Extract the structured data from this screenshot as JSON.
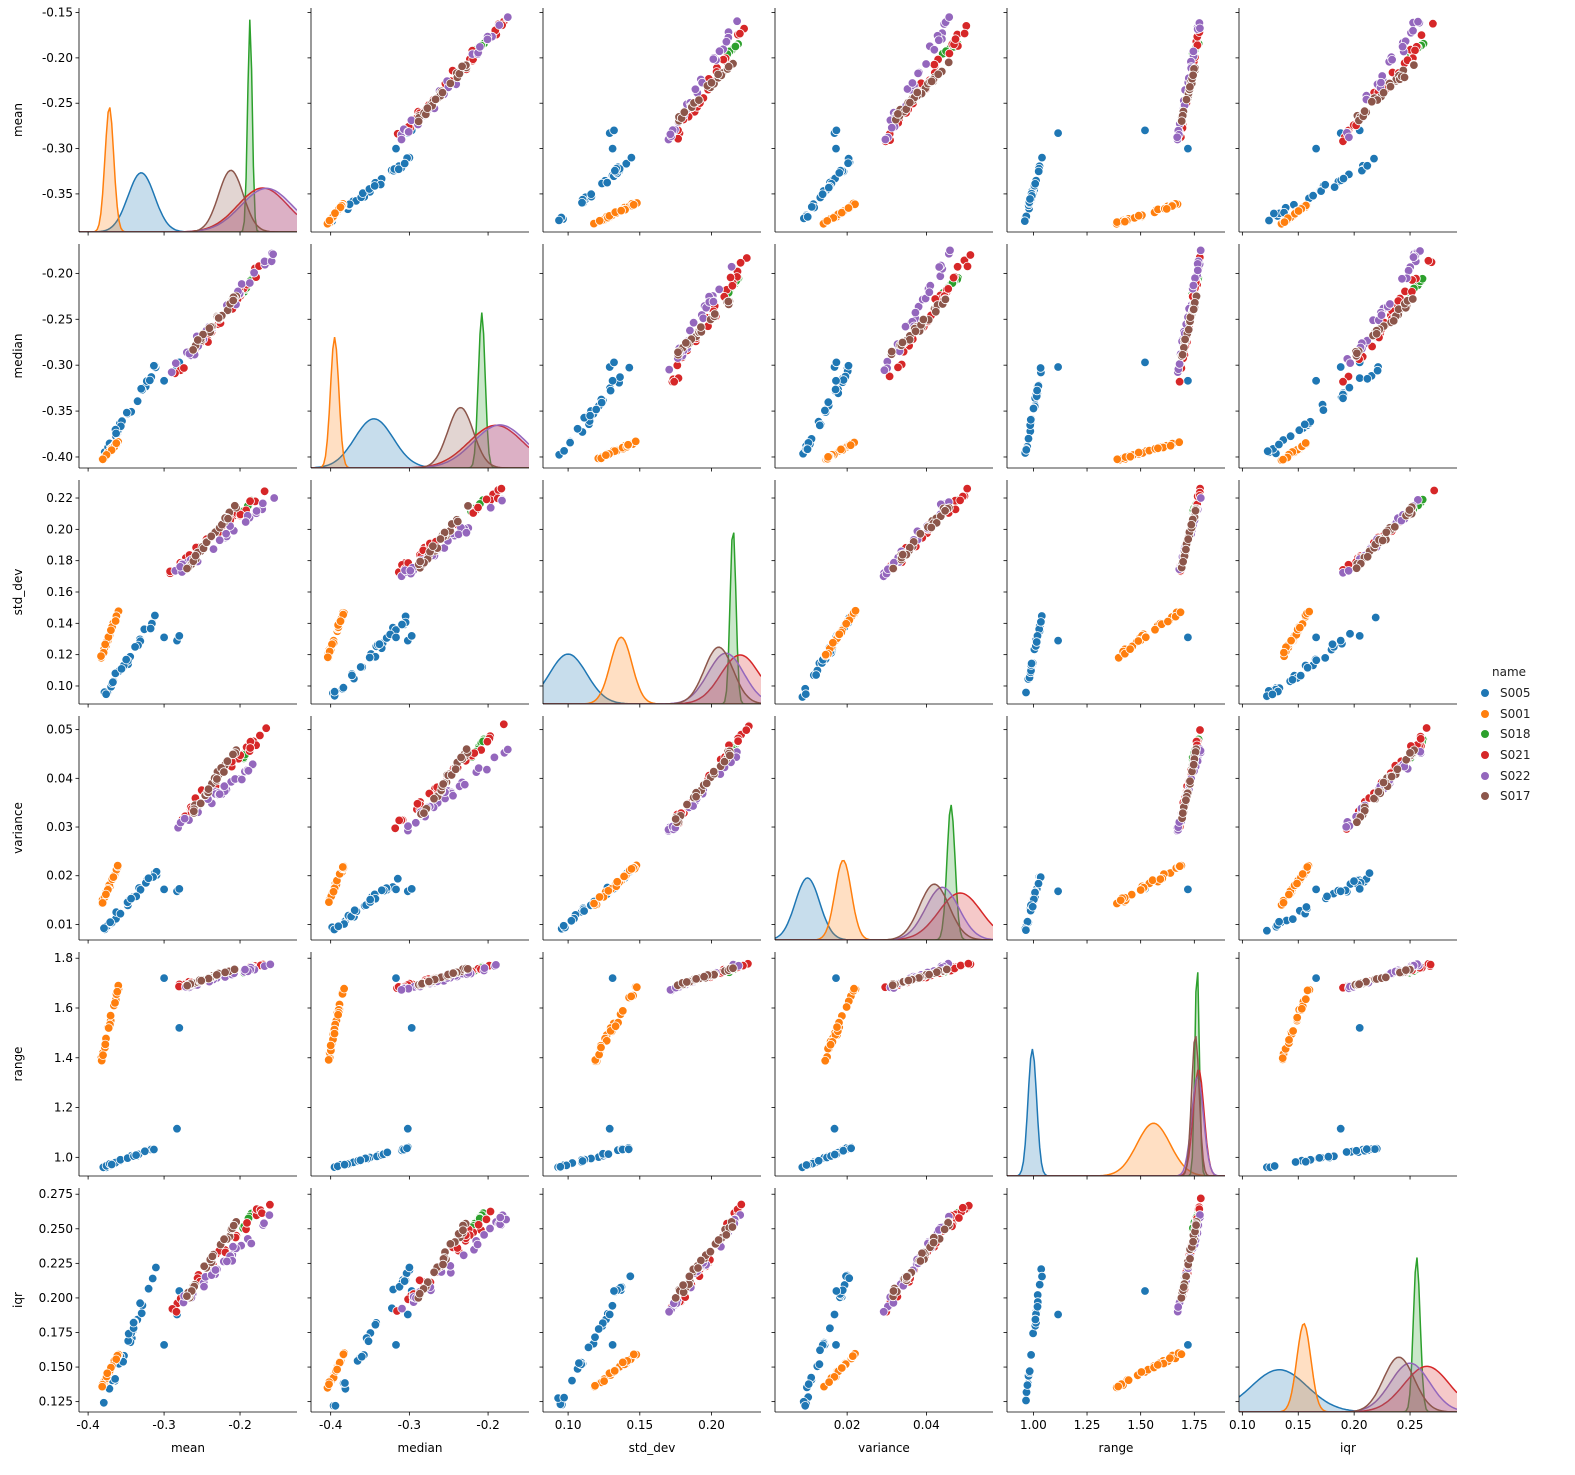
{
  "chart_data": {
    "type": "scatter",
    "title": "",
    "variables": [
      "mean",
      "median",
      "std_dev",
      "variance",
      "range",
      "iqr"
    ],
    "diagonal": "kde",
    "axes": {
      "mean": {
        "lim": [
          -0.412,
          -0.125
        ],
        "ticks": [
          -0.4,
          -0.3,
          -0.2
        ],
        "tick_labels": [
          "-0.4",
          "-0.3",
          "-0.2"
        ],
        "y_lim": [
          -0.392,
          -0.145
        ],
        "y_ticks": [
          -0.35,
          -0.3,
          -0.25,
          -0.2,
          -0.15
        ],
        "y_tick_labels": [
          "-0.35",
          "-0.30",
          "-0.25",
          "-0.20",
          "-0.15"
        ]
      },
      "median": {
        "lim": [
          -0.425,
          -0.148
        ],
        "ticks": [
          -0.4,
          -0.3,
          -0.2
        ],
        "tick_labels": [
          "-0.4",
          "-0.3",
          "-0.2"
        ],
        "y_lim": [
          -0.412,
          -0.168
        ],
        "y_ticks": [
          -0.4,
          -0.35,
          -0.3,
          -0.25,
          -0.2
        ],
        "y_tick_labels": [
          "-0.40",
          "-0.35",
          "-0.30",
          "-0.25",
          "-0.20"
        ]
      },
      "std_dev": {
        "lim": [
          0.0825,
          0.2345
        ],
        "ticks": [
          0.1,
          0.15,
          0.2
        ],
        "tick_labels": [
          "0.10",
          "0.15",
          "0.20"
        ],
        "y_lim": [
          0.0885,
          0.2315
        ],
        "y_ticks": [
          0.1,
          0.12,
          0.14,
          0.16,
          0.18,
          0.2,
          0.22
        ],
        "y_tick_labels": [
          "0.10",
          "0.12",
          "0.14",
          "0.16",
          "0.18",
          "0.20",
          "0.22"
        ]
      },
      "variance": {
        "lim": [
          0.0018,
          0.0568
        ],
        "ticks": [
          0.02,
          0.04
        ],
        "tick_labels": [
          "0.02",
          "0.04"
        ],
        "y_lim": [
          0.0068,
          0.0528
        ],
        "y_ticks": [
          0.01,
          0.02,
          0.03,
          0.04,
          0.05
        ],
        "y_tick_labels": [
          "0.01",
          "0.02",
          "0.03",
          "0.04",
          "0.05"
        ]
      },
      "range": {
        "lim": [
          0.877,
          1.893
        ],
        "ticks": [
          1.0,
          1.25,
          1.5,
          1.75
        ],
        "tick_labels": [
          "1.00",
          "1.25",
          "1.50",
          "1.75"
        ],
        "y_lim": [
          0.925,
          1.825
        ],
        "y_ticks": [
          1.0,
          1.2,
          1.4,
          1.6,
          1.8
        ],
        "y_tick_labels": [
          "1.0",
          "1.2",
          "1.4",
          "1.6",
          "1.8"
        ]
      },
      "iqr": {
        "lim": [
          0.097,
          0.292
        ],
        "ticks": [
          0.1,
          0.15,
          0.2,
          0.25
        ],
        "tick_labels": [
          "0.10",
          "0.15",
          "0.20",
          "0.25"
        ],
        "y_lim": [
          0.1175,
          0.2795
        ],
        "y_ticks": [
          0.125,
          0.15,
          0.175,
          0.2,
          0.225,
          0.25,
          0.275
        ],
        "y_tick_labels": [
          "0.125",
          "0.150",
          "0.175",
          "0.200",
          "0.225",
          "0.250",
          "0.275"
        ]
      }
    },
    "legend": {
      "title": "name",
      "placement": "right"
    },
    "series": [
      {
        "name": "S005",
        "color": "#1f77b4",
        "mean": [
          -0.38,
          -0.31
        ],
        "median": [
          -0.398,
          -0.3
        ],
        "std_dev": [
          0.093,
          0.145
        ],
        "variance": [
          0.0087,
          0.021
        ],
        "range": [
          0.96,
          1.04
        ],
        "iqr": [
          0.122,
          0.222
        ],
        "kde_peak": {
          "mean": -0.33,
          "median": -0.345,
          "std_dev": 0.1,
          "variance": 0.01,
          "range": 0.995,
          "iqr": 0.133
        },
        "outliers": [
          {
            "mean": -0.283,
            "median": -0.302,
            "std_dev": 0.129,
            "variance": 0.0168,
            "range": 1.115,
            "iqr": 0.188
          },
          {
            "mean": -0.28,
            "median": -0.297,
            "std_dev": 0.132,
            "variance": 0.0173,
            "range": 1.52,
            "iqr": 0.205
          },
          {
            "mean": -0.3,
            "median": -0.317,
            "std_dev": 0.131,
            "variance": 0.0172,
            "range": 1.72,
            "iqr": 0.166
          }
        ]
      },
      {
        "name": "S001",
        "color": "#ff7f0e",
        "mean": [
          -0.383,
          -0.36
        ],
        "median": [
          -0.404,
          -0.383
        ],
        "std_dev": [
          0.118,
          0.148
        ],
        "variance": [
          0.014,
          0.0222
        ],
        "range": [
          1.38,
          1.69
        ],
        "iqr": [
          0.135,
          0.16
        ],
        "kde_peak": {
          "mean": -0.372,
          "median": -0.395,
          "std_dev": 0.137,
          "variance": 0.019,
          "range": 1.56,
          "iqr": 0.155
        }
      },
      {
        "name": "S018",
        "color": "#2ca02c",
        "mean": [
          -0.196,
          -0.184
        ],
        "median": [
          -0.222,
          -0.205
        ],
        "std_dev": [
          0.211,
          0.219
        ],
        "variance": [
          0.044,
          0.048
        ],
        "range": [
          1.74,
          1.77
        ],
        "iqr": [
          0.25,
          0.262
        ],
        "kde_peak": {
          "mean": -0.187,
          "median": -0.208,
          "std_dev": 0.215,
          "variance": 0.0462,
          "range": 1.763,
          "iqr": 0.256
        }
      },
      {
        "name": "S021",
        "color": "#d62728",
        "mean": [
          -0.292,
          -0.16
        ],
        "median": [
          -0.318,
          -0.18
        ],
        "std_dev": [
          0.172,
          0.226
        ],
        "variance": [
          0.0296,
          0.0511
        ],
        "range": [
          1.68,
          1.78
        ],
        "iqr": [
          0.19,
          0.272
        ],
        "kde_peak": {
          "mean": -0.17,
          "median": -0.19,
          "std_dev": 0.22,
          "variance": 0.0485,
          "range": 1.77,
          "iqr": 0.265
        }
      },
      {
        "name": "S022",
        "color": "#9467bd",
        "mean": [
          -0.29,
          -0.155
        ],
        "median": [
          -0.31,
          -0.175
        ],
        "std_dev": [
          0.17,
          0.22
        ],
        "variance": [
          0.0292,
          0.046
        ],
        "range": [
          1.67,
          1.78
        ],
        "iqr": [
          0.19,
          0.26
        ],
        "kde_peak": {
          "mean": -0.165,
          "median": -0.185,
          "std_dev": 0.21,
          "variance": 0.044,
          "range": 1.765,
          "iqr": 0.25
        }
      },
      {
        "name": "S017",
        "color": "#8c564b",
        "mean": [
          -0.27,
          -0.205
        ],
        "median": [
          -0.29,
          -0.225
        ],
        "std_dev": [
          0.175,
          0.215
        ],
        "variance": [
          0.031,
          0.046
        ],
        "range": [
          1.69,
          1.76
        ],
        "iqr": [
          0.2,
          0.255
        ],
        "kde_peak": {
          "mean": -0.212,
          "median": -0.235,
          "std_dev": 0.205,
          "variance": 0.042,
          "range": 1.755,
          "iqr": 0.24
        }
      }
    ]
  }
}
